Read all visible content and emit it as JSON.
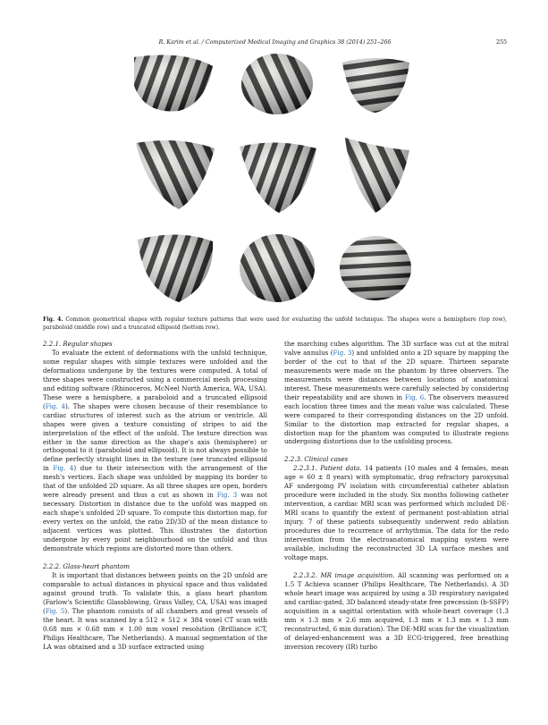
{
  "header": {
    "running_title": "R. Karim et al. / Computerized Medical Imaging and Graphics 38 (2014) 251–266",
    "page_number": "255"
  },
  "figure": {
    "caption_label": "Fig. 4.",
    "caption_text": " Common geometrical shapes with regular texture patterns that were used for evaluating the unfold technique. The shapes were a hemisphere (top row), paraboloid (middle row) and a truncated ellipsoid (bottom row)."
  },
  "left": {
    "s1_head": "2.2.1.  Regular shapes",
    "s1_p1": "To evaluate the extent of deformations with the unfold technique, some regular shapes with simple textures were unfolded and the deformations undergone by the textures were computed. A total of three shapes were constructed using a commercial mesh processing and editing software (Rhinoceros, McNeel North America, WA, USA). These were a hemisphere, a paraboloid and a truncated ellipsoid (",
    "s1_ref1": "Fig. 4",
    "s1_p2": "). The shapes were chosen because of their resemblance to cardiac structures of interest such as the atrium or ventricle. All shapes were given a texture consisting of stripes to aid the interpretation of the effect of the unfold. The texture direction was either in the same direction as the shape's axis (hemisphere) or orthogonal to it (paraboloid and ellipsoid). It is not always possible to define perfectly straight lines in the texture (see truncated ellipsoid in ",
    "s1_ref2": "Fig. 4",
    "s1_p3": ") due to their intersection with the arrangement of the mesh's vertices. Each shape was unfolded by mapping its border to that of the unfolded 2D square. As all three shapes are open, borders were already present and thus a cut as shown in ",
    "s1_ref3": "Fig. 3",
    "s1_p4": " was not necessary. Distortion in distance due to the unfold was mapped on each shape's unfolded 2D square. To compute this distortion map, for every vertex on the unfold, the ratio 2D/3D of the mean distance to adjacent vertices was plotted. This illustrates the distortion undergone by every point neighbourhood on the unfold and thus demonstrate which regions are distorted more than others.",
    "s2_head": "2.2.2.  Glass-heart phantom",
    "s2_p1": "It is important that distances between points on the 2D unfold are comparable to actual distances in physical space and thus validated against ground truth. To validate this, a glass heart phantom (Farlow's Scientific Glassblowing, Grass Valley, CA, USA) was imaged (",
    "s2_ref1": "Fig. 5",
    "s2_p2": "). The phantom consists of all chambers and great vessels of the heart. It was scanned by a 512 × 512 × 384 voxel CT scan with 0.68 mm × 0.68 mm × 1.00 mm voxel resolution (Brilliance iCT, Philips Healthcare, The Netherlands). A manual segmentation of the LA was obtained and a 3D surface extracted using"
  },
  "right": {
    "p0a": "the marching cubes algorithm. The 3D surface was cut at the mitral valve annulus (",
    "p0_ref1": "Fig. 3",
    "p0b": ") and unfolded onto a 2D square by mapping the border of the cut to that of the 2D square. Thirteen separate measurements were made on the phantom by three observers. The measurements were distances between locations of anatomical interest. These measurements were carefully selected by considering their repeatability and are shown in ",
    "p0_ref2": "Fig. 6",
    "p0c": ". The observers measured each location three times and the mean value was calculated. These were compared to their corresponding distances on the 2D unfold. Similar to the distortion map extracted for regular shapes, a distortion map for the phantom was computed to illustrate regions undergoing distortions due to the unfolding process.",
    "s3_head": "2.2.3.  Clinical cases",
    "s31_head": "2.2.3.1.  Patient data.",
    "s31_text": " 14 patients (10 males and 4 females, mean age = 60 ± 8 years) with symptomatic, drug refractory paroxysmal AF undergoing PV isolation with circumferential catheter ablation procedure were included in the study. Six months following catheter intervention, a cardiac MRI scan was performed which included DE-MRI scans to quantify the extent of permanent post-ablation atrial injury. 7 of these patients subsequently underwent redo ablation procedures due to recurrence of arrhythmia. The data for the redo intervention from the electroanatomical mapping system were available, including the reconstructed 3D LA surface meshes and voltage maps.",
    "s32_head": "2.2.3.2.  MR image acquisition.",
    "s32_text": " All scanning was performed on a 1.5 T Achieva scanner (Philips Healthcare, The Netherlands). A 3D whole heart image was acquired by using a 3D respiratory navigated and cardiac-gated, 3D balanced steady-state free precession (b-SSFP) acquisition in a sagittal orientation with whole-heart coverage (1.3 mm × 1.3 mm × 2.6 mm acquired, 1.3 mm × 1.3 mm × 1.3 mm reconstructed, 6 min duration). The DE-MRI scan for the visualization of delayed-enhancement was a 3D ECG-triggered, free breathing inversion recovery (IR) turbo"
  },
  "colors": {
    "link": "#2a6fb6",
    "shape_light": "#e4e4e0",
    "shape_dark": "#141414"
  }
}
